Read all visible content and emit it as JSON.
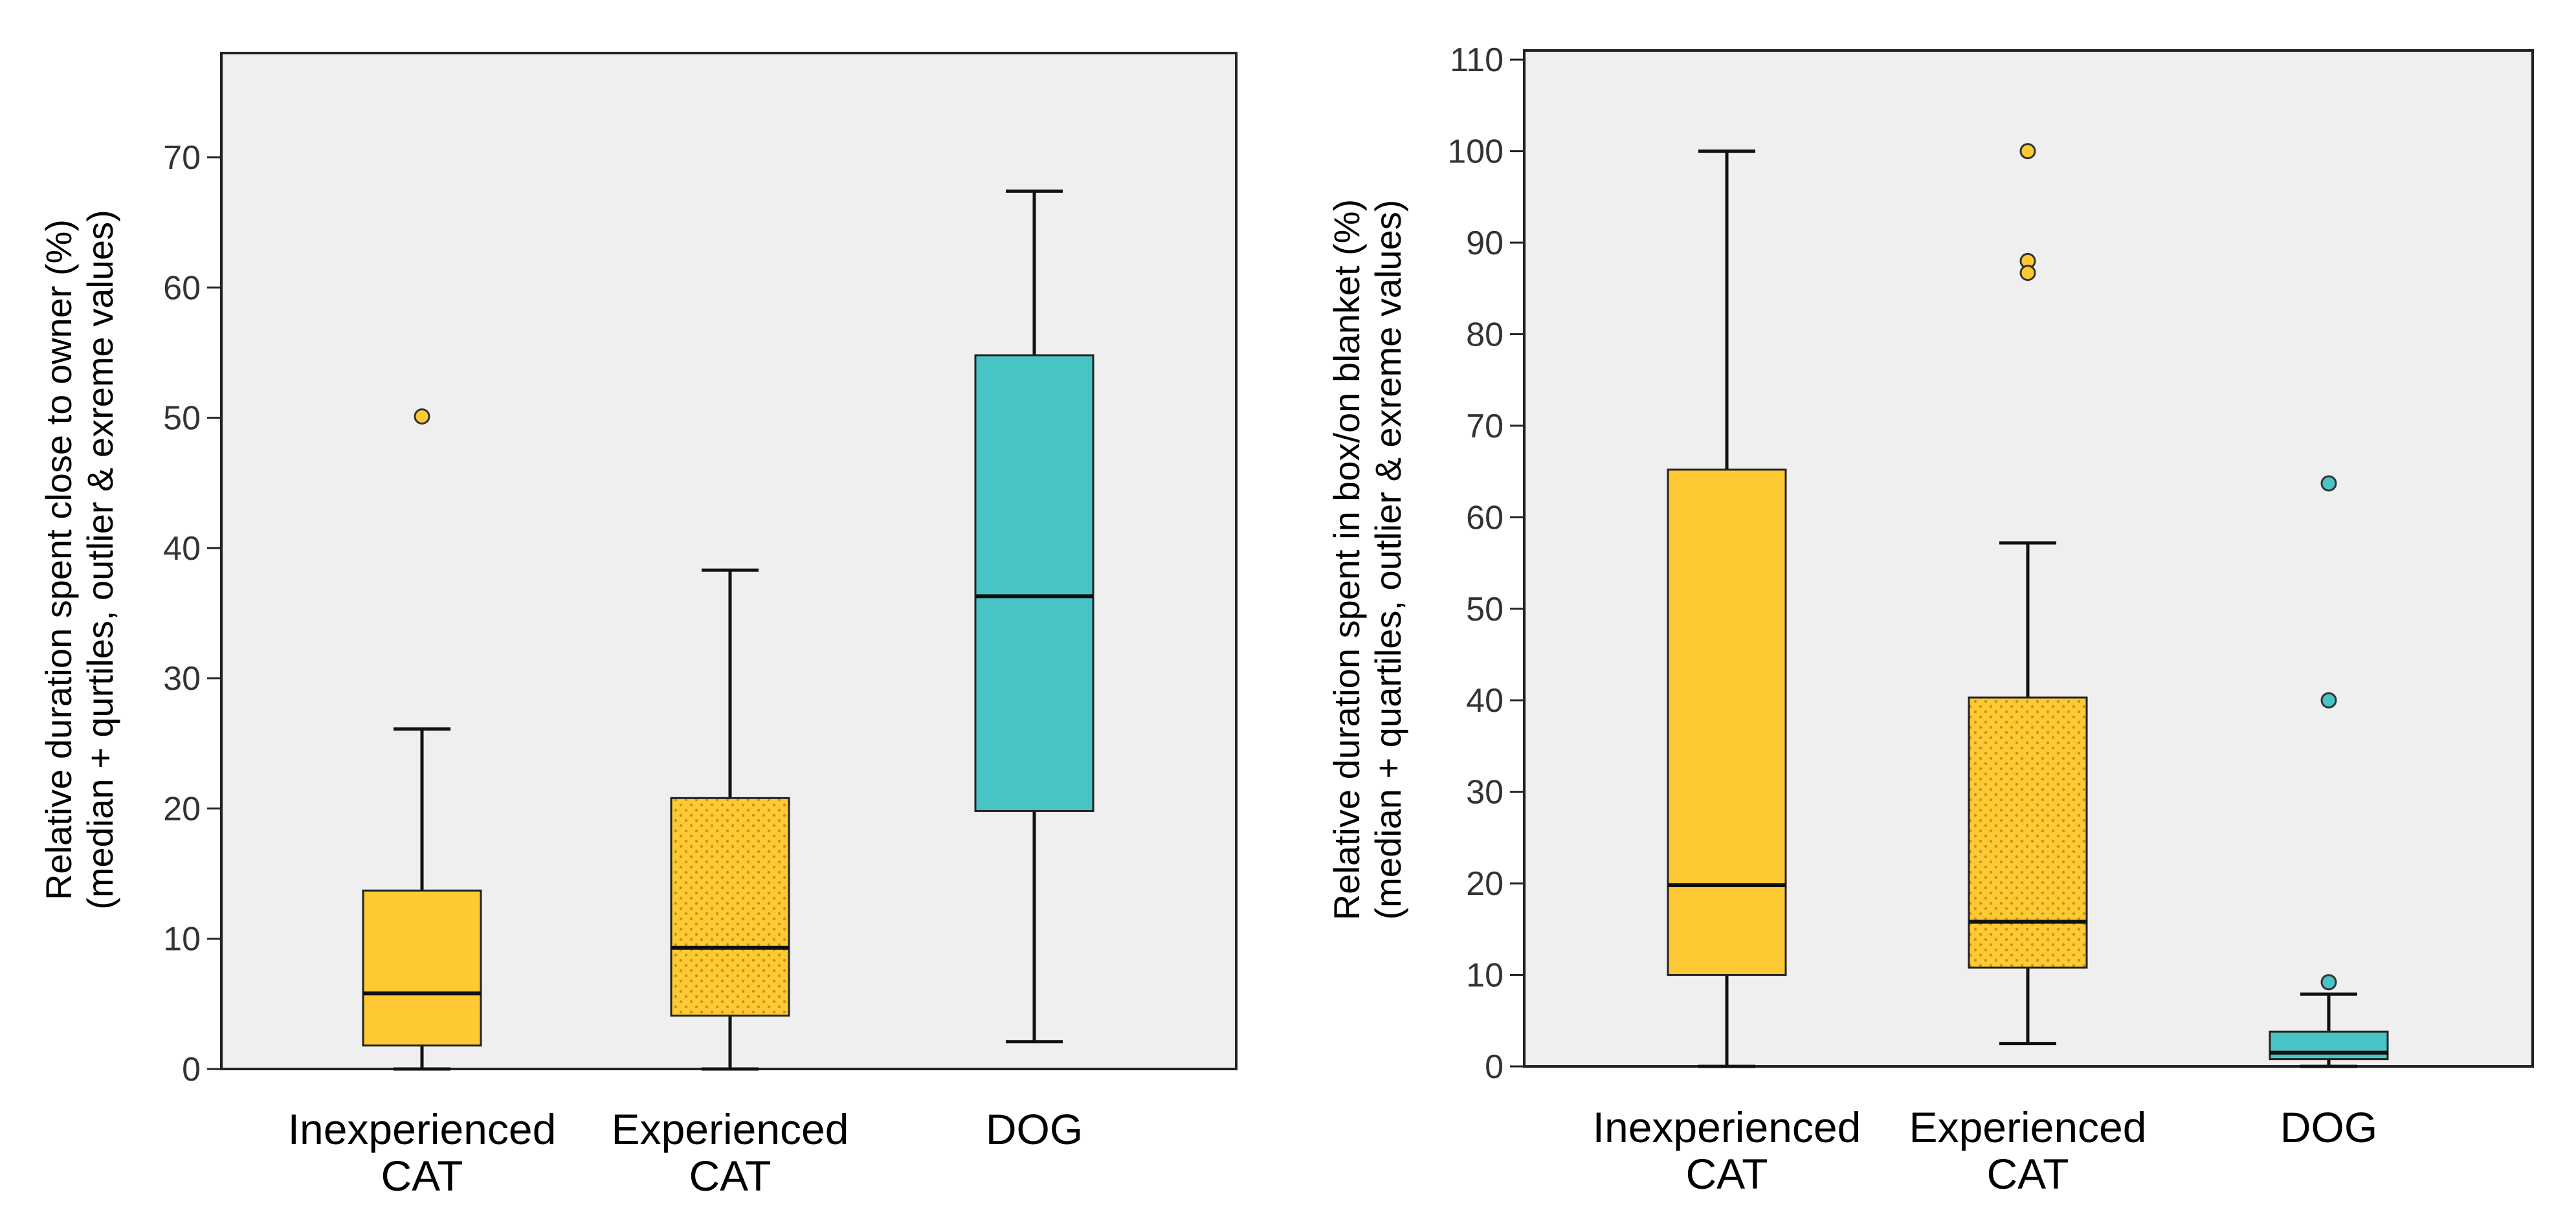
{
  "chart_data": [
    {
      "type": "box",
      "ylabel_line1": "Relative duration spent close to owner (%)",
      "ylabel_line2": "(median + qurtiles, outlier & exreme values)",
      "ylim": [
        0,
        78
      ],
      "yticks": [
        0,
        10,
        20,
        30,
        40,
        50,
        60,
        70
      ],
      "ytick_labels": [
        "0",
        "10",
        "20",
        "30",
        "40",
        "50",
        "60",
        "70"
      ],
      "categories": [
        {
          "line1": "Inexperienced",
          "line2": "CAT"
        },
        {
          "line1": "Experienced",
          "line2": "CAT"
        },
        {
          "line1": "DOG",
          "line2": ""
        }
      ],
      "boxes": [
        {
          "min": 0,
          "q1": 1.8,
          "median": 5.8,
          "q3": 13.7,
          "max": 26.1,
          "outliers": [
            50.1
          ],
          "color": "#FFC933",
          "pattern": "solid"
        },
        {
          "min": 0,
          "q1": 4.1,
          "median": 9.3,
          "q3": 20.8,
          "max": 38.3,
          "outliers": [],
          "color": "#FFC933",
          "pattern": "dotted"
        },
        {
          "min": 2.1,
          "q1": 19.8,
          "median": 36.3,
          "q3": 54.8,
          "max": 67.4,
          "outliers": [],
          "color": "#48C3C6",
          "pattern": "solid"
        }
      ]
    },
    {
      "type": "box",
      "ylabel_line1": "Relative duration spent in box/on blanket (%)",
      "ylabel_line2": "(median + quartiles, outlier & exreme values)",
      "ylim": [
        0,
        111
      ],
      "yticks": [
        0,
        10,
        20,
        30,
        40,
        50,
        60,
        70,
        80,
        90,
        100,
        110
      ],
      "ytick_labels": [
        "0",
        "10",
        "20",
        "30",
        "40",
        "50",
        "60",
        "70",
        "80",
        "90",
        "100",
        "110"
      ],
      "categories": [
        {
          "line1": "Inexperienced",
          "line2": "CAT"
        },
        {
          "line1": "Experienced",
          "line2": "CAT"
        },
        {
          "line1": "DOG",
          "line2": ""
        }
      ],
      "boxes": [
        {
          "min": 0,
          "q1": 10,
          "median": 19.8,
          "q3": 65.2,
          "max": 100,
          "outliers": [],
          "color": "#FFC933",
          "pattern": "solid"
        },
        {
          "min": 2.5,
          "q1": 10.8,
          "median": 15.8,
          "q3": 40.3,
          "max": 57.2,
          "outliers": [
            100,
            88,
            86.7
          ],
          "color": "#FFC933",
          "pattern": "dotted"
        },
        {
          "min": 0,
          "q1": 0.8,
          "median": 1.5,
          "q3": 3.8,
          "max": 7.9,
          "outliers": [
            9.2,
            40,
            63.7
          ],
          "color": "#48C3C6",
          "pattern": "solid"
        }
      ]
    }
  ]
}
